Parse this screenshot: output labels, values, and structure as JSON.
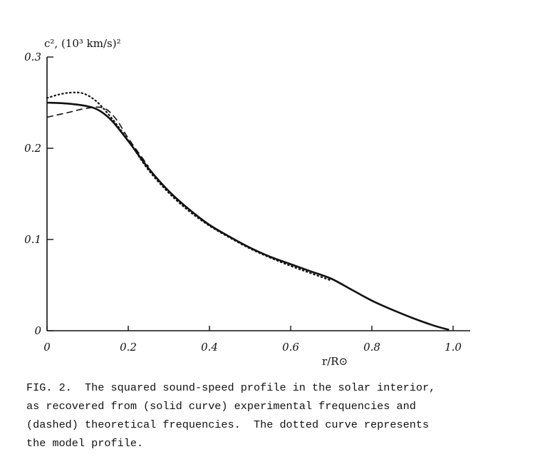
{
  "chart_data": {
    "type": "line",
    "ylabel": "c², (10³ km/s)²",
    "xlabel": "r/R⊙",
    "xlim": [
      0,
      1.0
    ],
    "ylim": [
      0,
      0.3
    ],
    "x_ticks": [
      "0",
      "0.2",
      "0.4",
      "0.6",
      "0.8",
      "1.0"
    ],
    "x_tick_values": [
      0,
      0.2,
      0.4,
      0.6,
      0.8,
      1.0
    ],
    "y_ticks": [
      "0",
      "0.1",
      "0.2",
      "0.3"
    ],
    "y_tick_values": [
      0,
      0.1,
      0.2,
      0.3
    ],
    "grid": false,
    "series": [
      {
        "style": "solid",
        "x": [
          0.0,
          0.05,
          0.1,
          0.13,
          0.16,
          0.2,
          0.25,
          0.3,
          0.35,
          0.4,
          0.45,
          0.5,
          0.55,
          0.6,
          0.65,
          0.7,
          0.75,
          0.8,
          0.85,
          0.9,
          0.95,
          0.99
        ],
        "y": [
          0.25,
          0.249,
          0.246,
          0.241,
          0.23,
          0.208,
          0.178,
          0.153,
          0.133,
          0.116,
          0.103,
          0.091,
          0.081,
          0.073,
          0.065,
          0.057,
          0.045,
          0.033,
          0.023,
          0.014,
          0.006,
          0.001
        ]
      },
      {
        "style": "dashed",
        "x": [
          0.0,
          0.05,
          0.1,
          0.14,
          0.17,
          0.2,
          0.25
        ],
        "y": [
          0.234,
          0.239,
          0.244,
          0.244,
          0.232,
          0.211,
          0.18
        ]
      },
      {
        "style": "dotted",
        "x": [
          0.0,
          0.03,
          0.06,
          0.09,
          0.12,
          0.15,
          0.18,
          0.21,
          0.25,
          0.3,
          0.35,
          0.4,
          0.45,
          0.5,
          0.55,
          0.6,
          0.65,
          0.7
        ],
        "y": [
          0.255,
          0.259,
          0.261,
          0.26,
          0.252,
          0.238,
          0.221,
          0.202,
          0.176,
          0.151,
          0.131,
          0.115,
          0.102,
          0.09,
          0.08,
          0.071,
          0.063,
          0.055
        ]
      }
    ]
  },
  "caption": "FIG. 2.  The squared sound-speed profile in the solar interior,\nas recovered from (solid curve) experimental frequencies and\n(dashed) theoretical frequencies.  The dotted curve represents\nthe model profile."
}
